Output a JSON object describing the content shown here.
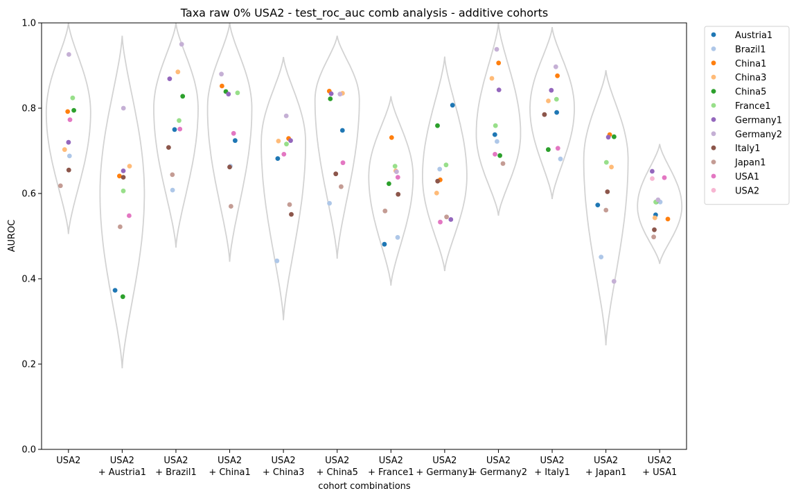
{
  "chart_data": {
    "type": "violin-strip",
    "title": "Taxa raw 0% USA2 - test_roc_auc comb analysis - additive cohorts",
    "xlabel": "cohort combinations",
    "ylabel": "AUROC",
    "ylim": [
      0,
      1
    ],
    "yticks": [
      "0.0",
      "0.2",
      "0.4",
      "0.6",
      "0.8",
      "1.0"
    ],
    "yticks_values": [
      0,
      0.2,
      0.4,
      0.6,
      0.8,
      1.0
    ],
    "grid": false,
    "legend_position": "outside-top-right",
    "violin_color": "#d3d3d3",
    "categories": [
      [
        "USA2"
      ],
      [
        "USA2",
        "+ Austria1"
      ],
      [
        "USA2",
        "+ Brazil1"
      ],
      [
        "USA2",
        "+ China1"
      ],
      [
        "USA2",
        "+ China3"
      ],
      [
        "USA2",
        "+ China5"
      ],
      [
        "USA2",
        "+ France1"
      ],
      [
        "USA2",
        "+ Germany1"
      ],
      [
        "USA2",
        "+ Germany2"
      ],
      [
        "USA2",
        "+ Italy1"
      ],
      [
        "USA2",
        "+ Japan1"
      ],
      [
        "USA2",
        "+ USA1"
      ]
    ],
    "violins": [
      {
        "min": 0.505,
        "max": 1.0,
        "mode": 0.79
      },
      {
        "min": 0.19,
        "max": 0.97,
        "mode": 0.6
      },
      {
        "min": 0.473,
        "max": 1.0,
        "mode": 0.8
      },
      {
        "min": 0.44,
        "max": 1.0,
        "mode": 0.8
      },
      {
        "min": 0.303,
        "max": 0.92,
        "mode": 0.72
      },
      {
        "min": 0.447,
        "max": 0.97,
        "mode": 0.82
      },
      {
        "min": 0.384,
        "max": 0.828,
        "mode": 0.64
      },
      {
        "min": 0.418,
        "max": 0.921,
        "mode": 0.64
      },
      {
        "min": 0.548,
        "max": 1.0,
        "mode": 0.74
      },
      {
        "min": 0.587,
        "max": 0.99,
        "mode": 0.8
      },
      {
        "min": 0.244,
        "max": 0.889,
        "mode": 0.68
      },
      {
        "min": 0.435,
        "max": 0.716,
        "mode": 0.57
      }
    ],
    "series": [
      {
        "name": "Austria1",
        "color": "#1f77b4",
        "values": [
          null,
          0.373,
          0.75,
          0.724,
          0.682,
          0.748,
          0.481,
          0.807,
          0.738,
          0.79,
          0.573,
          0.55
        ]
      },
      {
        "name": "Brazil1",
        "color": "#aec7e8",
        "values": [
          0.688,
          null,
          0.608,
          0.664,
          0.442,
          0.577,
          0.497,
          0.657,
          0.722,
          0.681,
          0.451,
          0.58
        ]
      },
      {
        "name": "China1",
        "color": "#ff7f0e",
        "values": [
          0.792,
          0.641,
          null,
          0.852,
          0.729,
          0.84,
          0.731,
          0.632,
          0.906,
          0.876,
          0.738,
          0.54
        ]
      },
      {
        "name": "China3",
        "color": "#ffbb78",
        "values": [
          0.703,
          0.664,
          0.885,
          null,
          0.723,
          0.835,
          0.653,
          0.601,
          0.87,
          0.817,
          0.662,
          0.543
        ]
      },
      {
        "name": "China5",
        "color": "#2ca02c",
        "values": [
          0.795,
          0.358,
          0.828,
          0.839,
          null,
          0.822,
          0.623,
          0.759,
          0.689,
          0.703,
          0.733,
          0.58
        ]
      },
      {
        "name": "France1",
        "color": "#98df8a",
        "values": [
          0.824,
          0.606,
          0.771,
          0.836,
          0.716,
          null,
          0.664,
          0.667,
          0.759,
          0.821,
          0.673,
          0.58
        ]
      },
      {
        "name": "Germany1",
        "color": "#9467bd",
        "values": [
          0.72,
          0.653,
          0.869,
          0.833,
          0.724,
          0.834,
          null,
          0.539,
          0.843,
          0.842,
          0.732,
          0.652
        ]
      },
      {
        "name": "Germany2",
        "color": "#c5b0d5",
        "values": [
          0.926,
          0.8,
          0.95,
          0.88,
          0.782,
          0.833,
          0.651,
          null,
          0.938,
          0.897,
          0.394,
          0.585
        ]
      },
      {
        "name": "Italy1",
        "color": "#8c564b",
        "values": [
          0.655,
          0.638,
          0.708,
          0.662,
          0.551,
          0.646,
          0.598,
          0.629,
          null,
          0.785,
          0.604,
          0.515
        ]
      },
      {
        "name": "Japan1",
        "color": "#c49c94",
        "values": [
          0.618,
          0.522,
          0.644,
          0.57,
          0.574,
          0.616,
          0.559,
          0.545,
          0.67,
          null,
          0.561,
          0.498
        ]
      },
      {
        "name": "USA1",
        "color": "#e377c2",
        "values": [
          0.773,
          0.548,
          0.751,
          0.741,
          0.692,
          0.672,
          0.638,
          0.533,
          0.692,
          0.706,
          null,
          0.637
        ]
      },
      {
        "name": "USA2",
        "color": "#f7b6d2",
        "values": [
          null,
          null,
          null,
          null,
          null,
          null,
          null,
          null,
          null,
          null,
          null,
          0.635
        ]
      }
    ]
  }
}
